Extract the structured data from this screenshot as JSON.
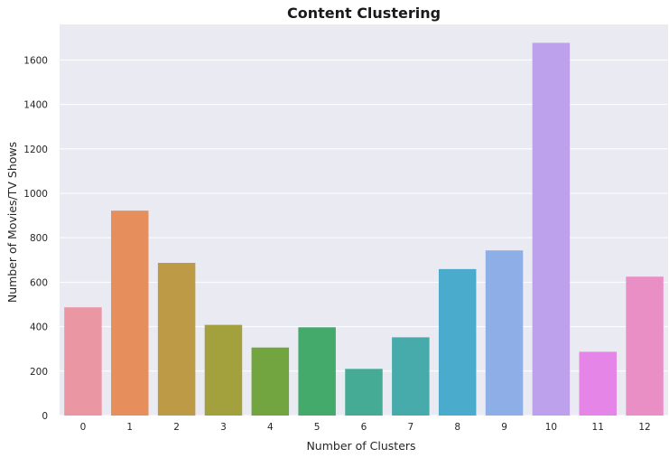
{
  "chart_data": {
    "type": "bar",
    "title": "Content Clustering",
    "xlabel": "Number of Clusters",
    "ylabel": "Number of Movies/TV Shows",
    "categories": [
      "0",
      "1",
      "2",
      "3",
      "4",
      "5",
      "6",
      "7",
      "8",
      "9",
      "10",
      "11",
      "12"
    ],
    "values": [
      487,
      922,
      687,
      408,
      306,
      397,
      210,
      352,
      659,
      743,
      1677,
      287,
      625
    ],
    "colors": [
      "#ea96a3",
      "#e68f5c",
      "#bd9a45",
      "#a3a13e",
      "#72a43f",
      "#43aa6c",
      "#46ab94",
      "#47aaab",
      "#4aabcd",
      "#8eaee8",
      "#bda1ec",
      "#e685e8",
      "#e98fc6"
    ],
    "ylim": [
      0,
      1760
    ],
    "yticks": [
      0,
      200,
      400,
      600,
      800,
      1000,
      1200,
      1400,
      1600
    ],
    "grid": true,
    "background": "#eaeaf2",
    "grid_color": "#ffffff"
  }
}
